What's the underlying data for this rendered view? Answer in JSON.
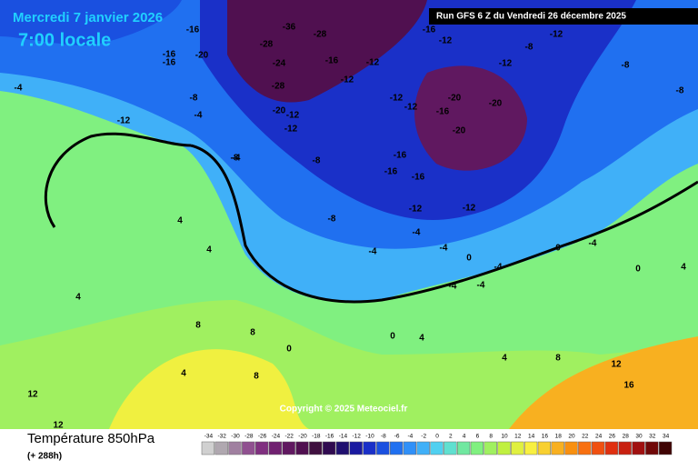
{
  "header": {
    "date": "Mercredi 7 janvier 2026",
    "time": "7:00 locale",
    "run": "Run GFS 6 Z du Vendredi 26 décembre 2025"
  },
  "copyright": "Copyright © 2025 Meteociel.fr",
  "footer": {
    "title": "Température 850hPa",
    "subtitle": "(+ 288h)"
  },
  "legend": {
    "ticks": [
      "-34",
      "-32",
      "-30",
      "-28",
      "-26",
      "-24",
      "-22",
      "-20",
      "-18",
      "-16",
      "-14",
      "-12",
      "-10",
      "-8",
      "-6",
      "-4",
      "-2",
      "0",
      "2",
      "4",
      "6",
      "8",
      "10",
      "12",
      "14",
      "16",
      "18",
      "20",
      "22",
      "24",
      "26",
      "28",
      "30",
      "32",
      "34"
    ],
    "colors": [
      "#d0d0d0",
      "#b0a8b0",
      "#a080a0",
      "#905090",
      "#803080",
      "#702070",
      "#601860",
      "#501050",
      "#401040",
      "#300a50",
      "#201070",
      "#1a1aa0",
      "#1a30c8",
      "#1a50e0",
      "#2070f0",
      "#3090f8",
      "#40b0f8",
      "#50d0f0",
      "#60e0d0",
      "#70e8a0",
      "#80f080",
      "#a0f060",
      "#c0f040",
      "#e0f040",
      "#f8f040",
      "#f8d030",
      "#f8b020",
      "#f89010",
      "#f87010",
      "#f05010",
      "#e03010",
      "#c82010",
      "#a01010",
      "#700808",
      "#400404"
    ]
  },
  "contour_labels": [
    "-16",
    "-20",
    "-16",
    "-16",
    "-4",
    "-12",
    "-8",
    "-4",
    "-12",
    "-36",
    "-28",
    "-24",
    "-28",
    "-20",
    "-28",
    "-16",
    "-12",
    "-12",
    "-12",
    "-12",
    "-12",
    "-16",
    "-12",
    "-20",
    "-20",
    "-16",
    "-20",
    "-12",
    "-8",
    "-8",
    "-12",
    "-8",
    "-8",
    "-4",
    "-8",
    "-16",
    "-16",
    "-16",
    "-12",
    "-12",
    "-4",
    "-4",
    "-4",
    "0",
    "-4",
    "0",
    "-4",
    "-4",
    "4",
    "4",
    "4",
    "8",
    "8",
    "8",
    "4",
    "0",
    "0",
    "4",
    "4",
    "8",
    "12",
    "12",
    "12",
    "16",
    "-8",
    "4",
    "0",
    "-4"
  ]
}
